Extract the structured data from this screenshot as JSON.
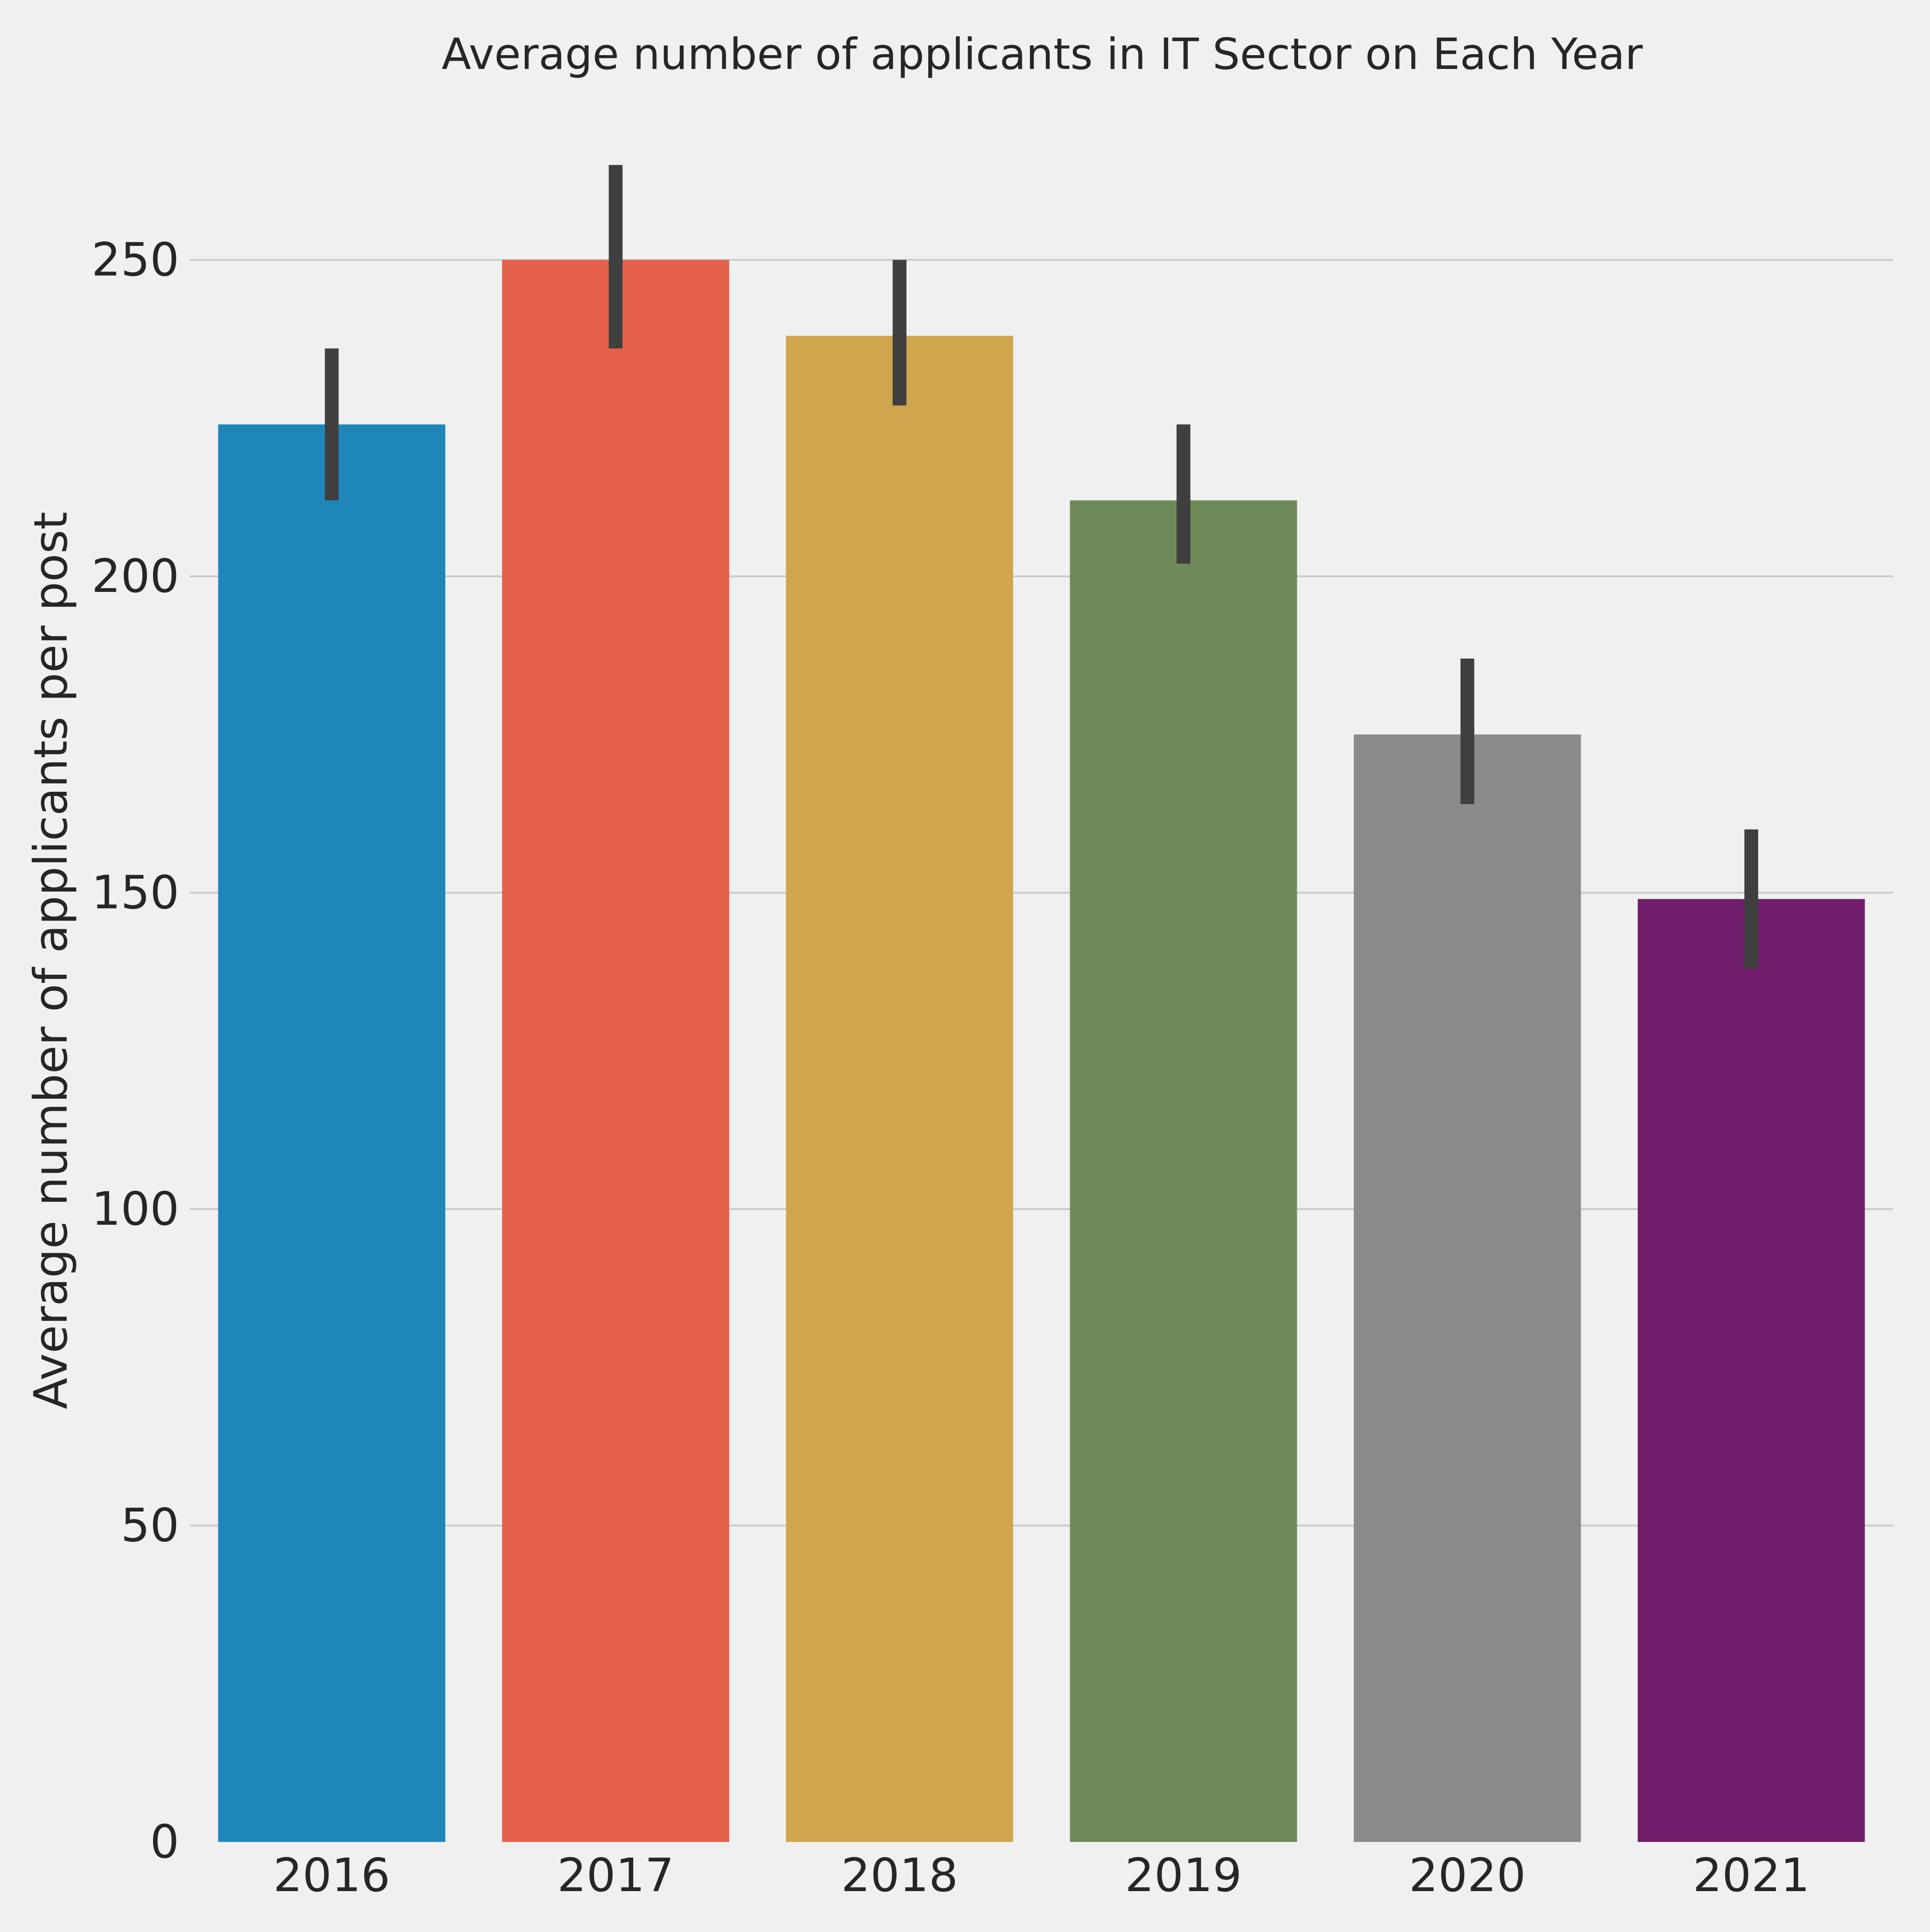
{
  "chart_data": {
    "type": "bar",
    "title": "Average number of applicants  in IT Sector on Each Year",
    "xlabel": "",
    "ylabel": "Average number of applicants per post",
    "categories": [
      "2016",
      "2017",
      "2018",
      "2019",
      "2020",
      "2021"
    ],
    "values": [
      224,
      250,
      238,
      212,
      175,
      149
    ],
    "error_bars": [
      {
        "low": 212,
        "high": 236
      },
      {
        "low": 236,
        "high": 265
      },
      {
        "low": 227,
        "high": 250
      },
      {
        "low": 202,
        "high": 224
      },
      {
        "low": 164,
        "high": 187
      },
      {
        "low": 138,
        "high": 160
      }
    ],
    "colors": [
      "#1f86b9",
      "#e5604a",
      "#cfa54e",
      "#6e8a59",
      "#8b8b8b",
      "#701e6b"
    ],
    "ylim": [
      0,
      270
    ],
    "yticks": [
      "0",
      "50",
      "100",
      "150",
      "200",
      "250"
    ],
    "grid": true,
    "legend": "none"
  }
}
